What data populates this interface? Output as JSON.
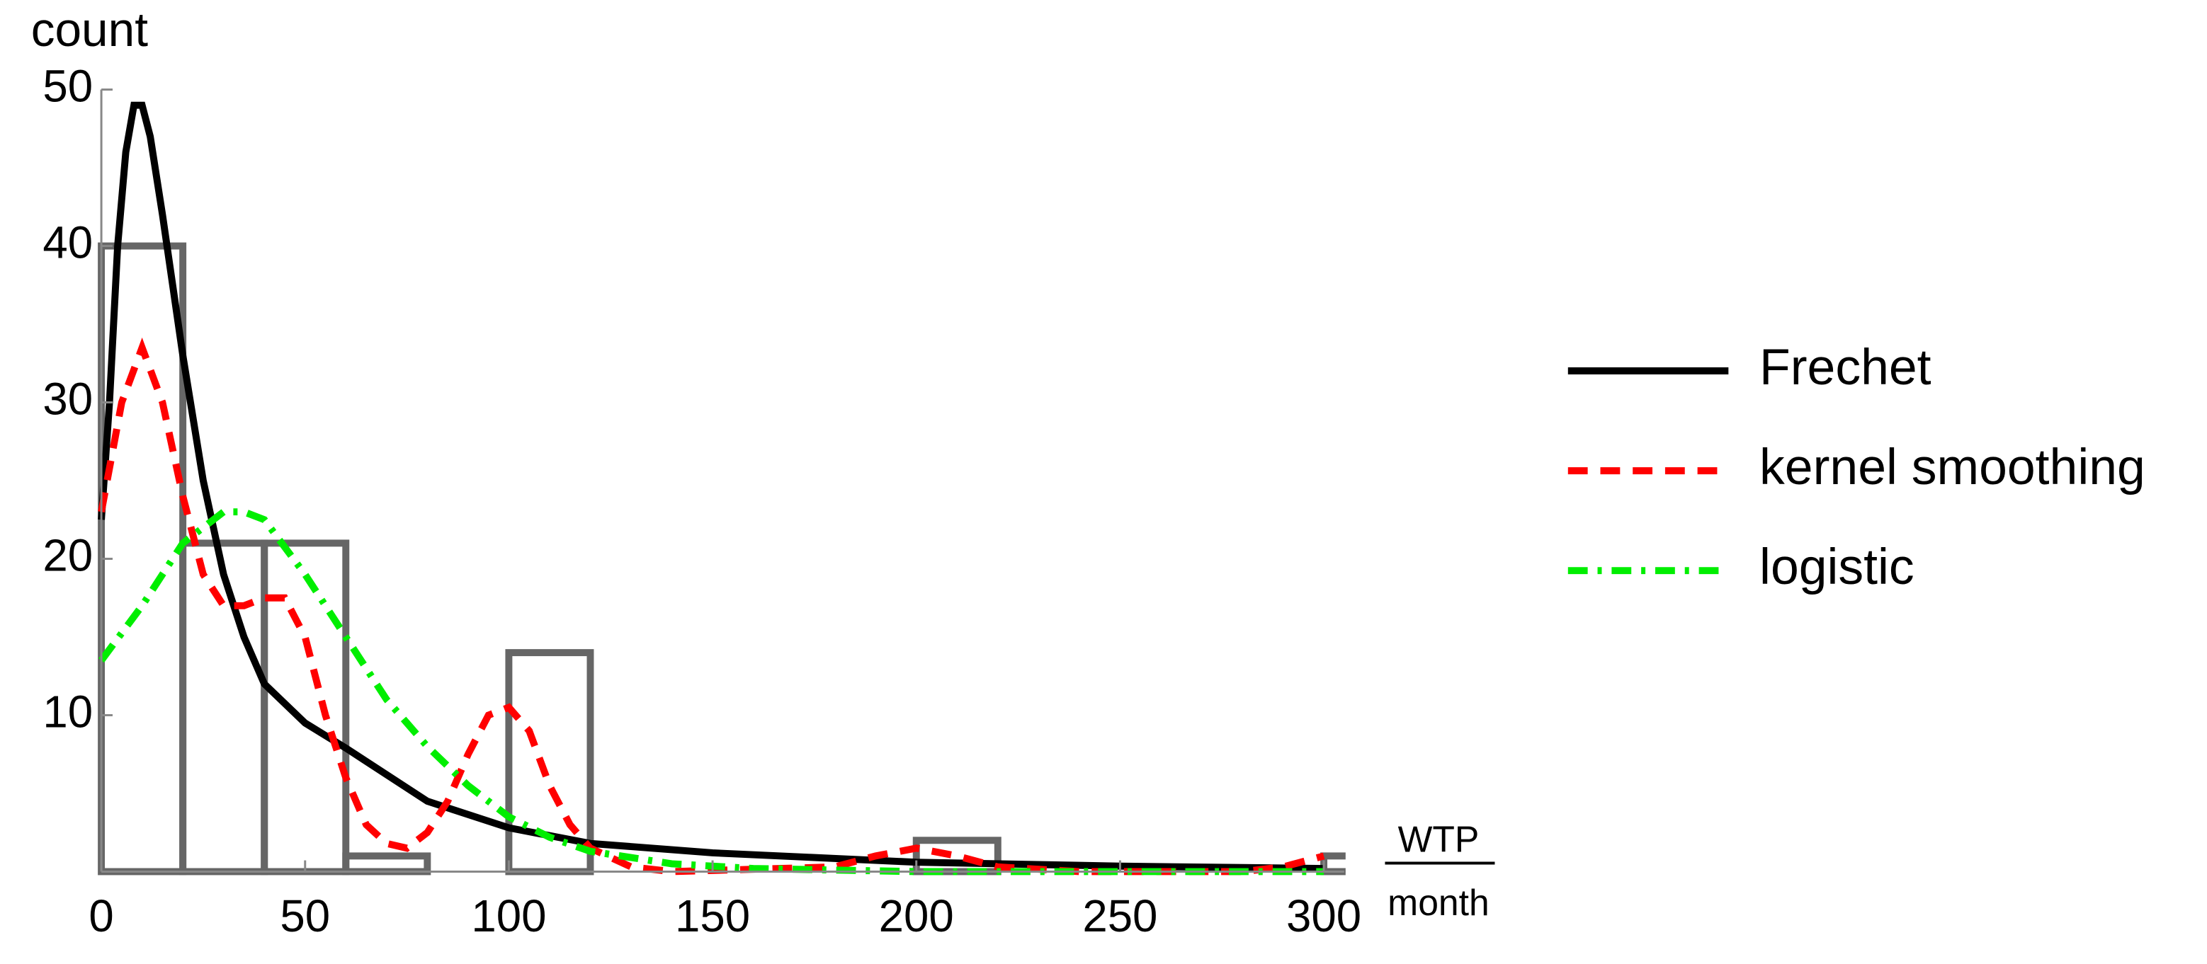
{
  "chart_data": {
    "type": "histogram",
    "y_label": "count",
    "x_label_numerator": "WTP",
    "x_label_denominator": "month",
    "bins": [
      0,
      20,
      40,
      60,
      80,
      100,
      120,
      140,
      160,
      180,
      200,
      220,
      240,
      260,
      280,
      300,
      320
    ],
    "counts": [
      40,
      21,
      21,
      1,
      0,
      14,
      0,
      0,
      0,
      0,
      2,
      0,
      0,
      0,
      0,
      1
    ],
    "bar_color": "#666666",
    "xlim": [
      0,
      305
    ],
    "ylim": [
      0,
      50
    ],
    "xticks": [
      0,
      50,
      100,
      150,
      200,
      250,
      300
    ],
    "yticks": [
      10,
      20,
      30,
      40,
      50
    ],
    "series": [
      {
        "name": "Frechet",
        "color": "#000000",
        "dash": "solid",
        "x": [
          0,
          2,
          4,
          6,
          8,
          10,
          12,
          15,
          20,
          25,
          30,
          35,
          40,
          50,
          60,
          80,
          100,
          120,
          150,
          200,
          250,
          300
        ],
        "values": [
          22.5,
          30,
          40,
          46,
          49,
          49,
          47,
          42,
          33,
          25,
          19,
          15,
          12,
          9.5,
          7.9,
          4.5,
          2.8,
          1.8,
          1.2,
          0.6,
          0.35,
          0.2
        ]
      },
      {
        "name": "kernel smoothing",
        "color": "#ff0000",
        "dash": "dashed",
        "x": [
          0,
          5,
          10,
          15,
          20,
          25,
          30,
          35,
          40,
          45,
          50,
          55,
          60,
          65,
          70,
          75,
          80,
          85,
          90,
          95,
          100,
          105,
          110,
          115,
          120,
          130,
          140,
          180,
          190,
          200,
          210,
          220,
          240,
          280,
          290,
          300
        ],
        "values": [
          23,
          30,
          33.5,
          30,
          24,
          19,
          17,
          17,
          17.5,
          17.5,
          15,
          10,
          6,
          3,
          1.8,
          1.5,
          2.5,
          4.5,
          7.5,
          10,
          10.5,
          9,
          5.5,
          3,
          1.5,
          0.3,
          0,
          0.3,
          1,
          1.5,
          1,
          0.3,
          0,
          0,
          0.3,
          1
        ]
      },
      {
        "name": "logistic",
        "color": "#00ee00",
        "dash": "dashdot",
        "x": [
          0,
          10,
          20,
          30,
          35,
          40,
          50,
          60,
          70,
          80,
          90,
          100,
          110,
          120,
          140,
          160,
          200,
          300
        ],
        "values": [
          13.5,
          17,
          21,
          23,
          23,
          22.5,
          19,
          15,
          11,
          8,
          5.5,
          3.5,
          2.2,
          1.3,
          0.5,
          0.2,
          0,
          0
        ]
      }
    ]
  }
}
